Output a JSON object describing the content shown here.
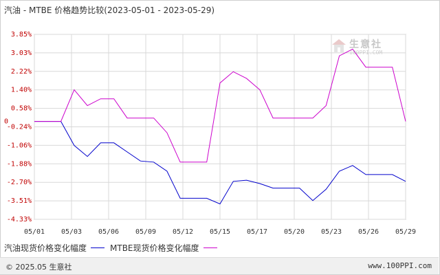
{
  "chart_data": {
    "type": "line",
    "title": "汽油 - MTBE 价格趋势比较(2023-05-01 - 2023-05-29)",
    "x_ticks": [
      "05/01",
      "05/03",
      "05/06",
      "05/09",
      "05/12",
      "05/15",
      "05/17",
      "05/20",
      "05/23",
      "05/26",
      "05/29"
    ],
    "y_ticks": [
      "3.85%",
      "3.03%",
      "2.22%",
      "1.40%",
      "0.58%",
      "-0.24%",
      "-1.06%",
      "-1.88%",
      "-2.70%",
      "-3.51%",
      "-4.33%"
    ],
    "zero_label": "0",
    "ylim": [
      -4.33,
      3.85
    ],
    "grid": true,
    "x_count": 29,
    "series": [
      {
        "name": "汽油现货价格变化幅度",
        "color": "#0000cc",
        "values": [
          0,
          0,
          0,
          -1.06,
          -1.55,
          -0.95,
          -0.95,
          -1.35,
          -1.75,
          -1.8,
          -2.2,
          -3.4,
          -3.4,
          -3.4,
          -3.65,
          -2.65,
          -2.6,
          -2.75,
          -2.95,
          -2.95,
          -2.95,
          -3.5,
          -3.0,
          -2.2,
          -1.95,
          -2.35,
          -2.35,
          -2.35,
          -2.65
        ]
      },
      {
        "name": "MTBE现货价格变化幅度",
        "color": "#cc00cc",
        "values": [
          0,
          0,
          0,
          1.4,
          0.7,
          1.0,
          1.0,
          0.15,
          0.15,
          0.15,
          -0.5,
          -1.8,
          -1.8,
          -1.8,
          1.7,
          2.2,
          1.9,
          1.4,
          0.15,
          0.15,
          0.15,
          0.15,
          0.7,
          2.9,
          3.2,
          2.4,
          2.4,
          2.4,
          0
        ]
      }
    ]
  },
  "legend": {
    "items": [
      {
        "label": "汽油现货价格变化幅度",
        "color": "#0000cc"
      },
      {
        "label": "MTBE现货价格变化幅度",
        "color": "#cc00cc"
      }
    ]
  },
  "footer": {
    "copyright": "© 2025.05 生意社",
    "url": "www.100PPI.com"
  },
  "watermark": {
    "brand": "生意社",
    "url": "100PPI.COM"
  }
}
